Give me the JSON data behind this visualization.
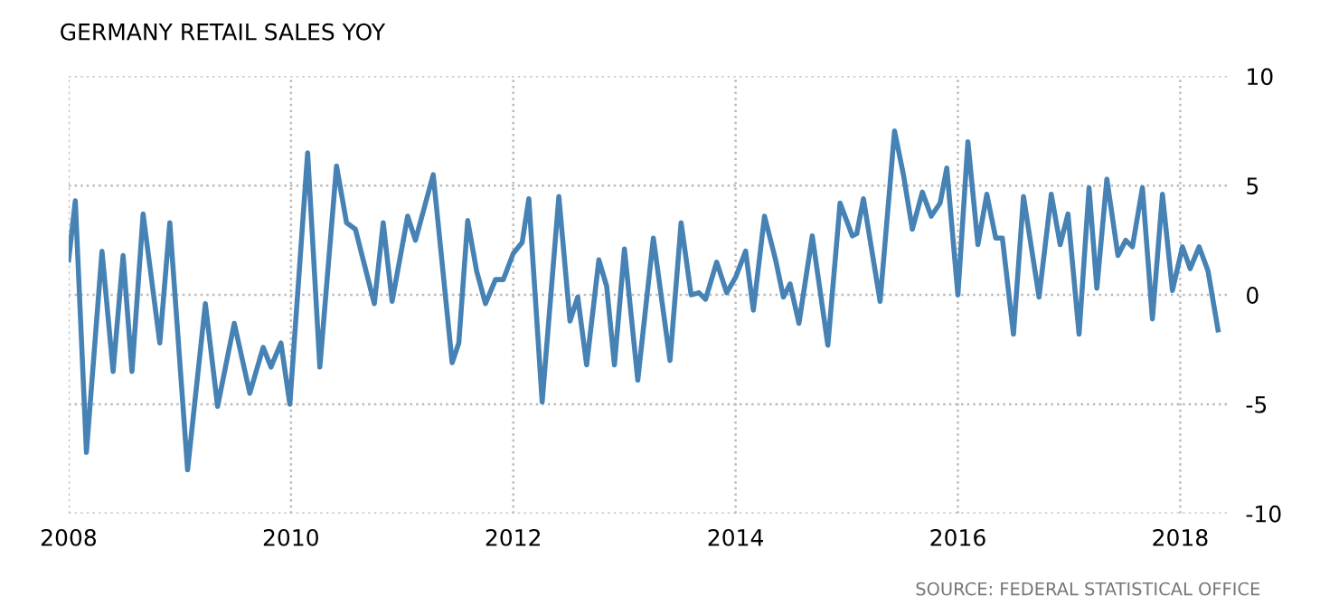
{
  "chart_data": {
    "type": "line",
    "title": "GERMANY RETAIL SALES YOY",
    "annotations": [
      "SOURCE: FEDERAL STATISTICAL OFFICE"
    ],
    "x": [
      2008.0,
      2008.06,
      2008.16,
      2008.3,
      2008.4,
      2008.49,
      2008.57,
      2008.67,
      2008.82,
      2008.91,
      2009.07,
      2009.23,
      2009.34,
      2009.49,
      2009.63,
      2009.75,
      2009.82,
      2009.91,
      2009.99,
      2010.15,
      2010.26,
      2010.41,
      2010.5,
      2010.58,
      2010.75,
      2010.83,
      2010.91,
      2011.05,
      2011.12,
      2011.28,
      2011.45,
      2011.51,
      2011.59,
      2011.67,
      2011.75,
      2011.84,
      2011.91,
      2012.0,
      2012.08,
      2012.14,
      2012.26,
      2012.41,
      2012.51,
      2012.58,
      2012.66,
      2012.77,
      2012.84,
      2012.91,
      2013.0,
      2013.12,
      2013.26,
      2013.41,
      2013.51,
      2013.6,
      2013.67,
      2013.73,
      2013.83,
      2013.92,
      2014.0,
      2014.09,
      2014.16,
      2014.26,
      2014.36,
      2014.43,
      2014.49,
      2014.57,
      2014.69,
      2014.83,
      2014.94,
      2015.05,
      2015.09,
      2015.15,
      2015.3,
      2015.43,
      2015.51,
      2015.59,
      2015.68,
      2015.76,
      2015.84,
      2015.9,
      2016.0,
      2016.09,
      2016.18,
      2016.26,
      2016.34,
      2016.4,
      2016.5,
      2016.59,
      2016.73,
      2016.84,
      2016.92,
      2016.99,
      2017.09,
      2017.18,
      2017.25,
      2017.34,
      2017.44,
      2017.51,
      2017.57,
      2017.66,
      2017.75,
      2017.84,
      2017.93,
      2018.02,
      2018.09,
      2018.17,
      2018.25,
      2018.34
    ],
    "series": [
      {
        "color": "#4682b4",
        "values": [
          1.6,
          4.3,
          -7.2,
          2.0,
          -3.5,
          1.8,
          -3.5,
          3.7,
          -2.2,
          3.3,
          -8.0,
          -0.4,
          -5.1,
          -1.3,
          -4.5,
          -2.4,
          -3.3,
          -2.2,
          -5.0,
          6.5,
          -3.3,
          5.9,
          3.3,
          3.0,
          -0.4,
          3.3,
          -0.3,
          3.6,
          2.5,
          5.5,
          -3.1,
          -2.2,
          3.4,
          1.1,
          -0.4,
          0.7,
          0.7,
          1.9,
          2.4,
          4.4,
          -4.9,
          4.5,
          -1.2,
          -0.1,
          -3.2,
          1.6,
          0.4,
          -3.2,
          2.1,
          -3.9,
          2.6,
          -3.0,
          3.3,
          0.0,
          0.1,
          -0.2,
          1.5,
          0.1,
          0.8,
          2.0,
          -0.7,
          3.6,
          1.6,
          -0.1,
          0.5,
          -1.3,
          2.7,
          -2.3,
          4.2,
          2.7,
          2.8,
          4.4,
          -0.3,
          7.5,
          5.5,
          3.0,
          4.7,
          3.6,
          4.2,
          5.8,
          0.0,
          7.0,
          2.3,
          4.6,
          2.6,
          2.6,
          -1.8,
          4.5,
          -0.1,
          4.6,
          2.3,
          3.7,
          -1.8,
          4.9,
          0.3,
          5.3,
          1.8,
          2.5,
          2.2,
          4.9,
          -1.1,
          4.6,
          0.2,
          2.2,
          1.2,
          2.2,
          1.1,
          -1.6
        ]
      }
    ],
    "xlim": [
      2008.0,
      2018.45
    ],
    "ylim": [
      -10,
      10
    ],
    "xticks": [
      2008,
      2010,
      2012,
      2014,
      2016,
      2018
    ],
    "yticks": [
      -10,
      -5,
      0,
      5,
      10
    ],
    "grid": true,
    "line_style": "solid",
    "marker": "none"
  }
}
